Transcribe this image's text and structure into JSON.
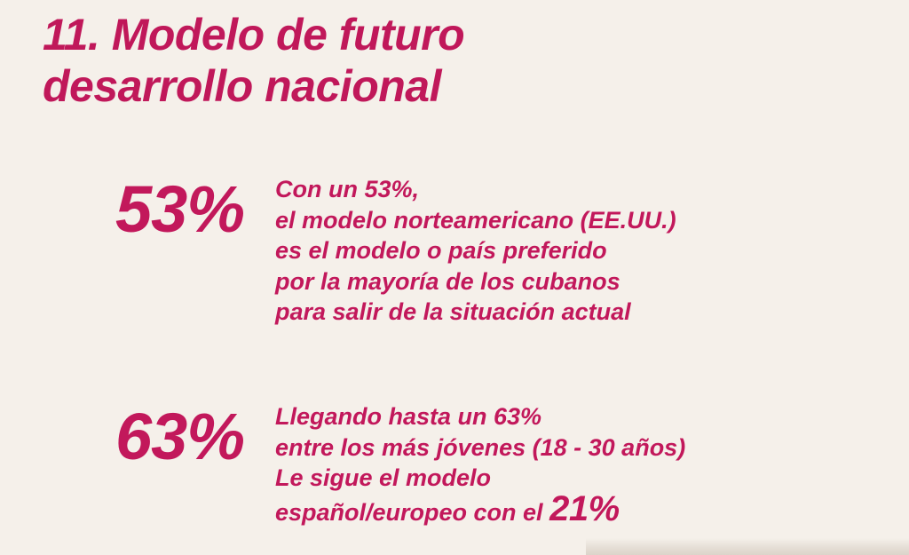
{
  "title": {
    "line1": "11. Modelo de futuro",
    "line2": "desarrollo nacional"
  },
  "stat1": {
    "value": "53%",
    "lines": [
      "Con un 53%,",
      "el modelo norteamericano (EE.UU.)",
      "es el modelo o país preferido",
      "por la mayoría de los cubanos",
      "para salir de la situación actual"
    ]
  },
  "stat2": {
    "value": "63%",
    "lines": [
      "Llegando hasta un 63%",
      "entre los más jóvenes (18 - 30 años)",
      "Le sigue el modelo"
    ],
    "last_line_prefix": "español/europeo con el ",
    "last_line_value": "21%"
  },
  "colors": {
    "accent": "#c2185b",
    "background": "#f5f0ea"
  }
}
